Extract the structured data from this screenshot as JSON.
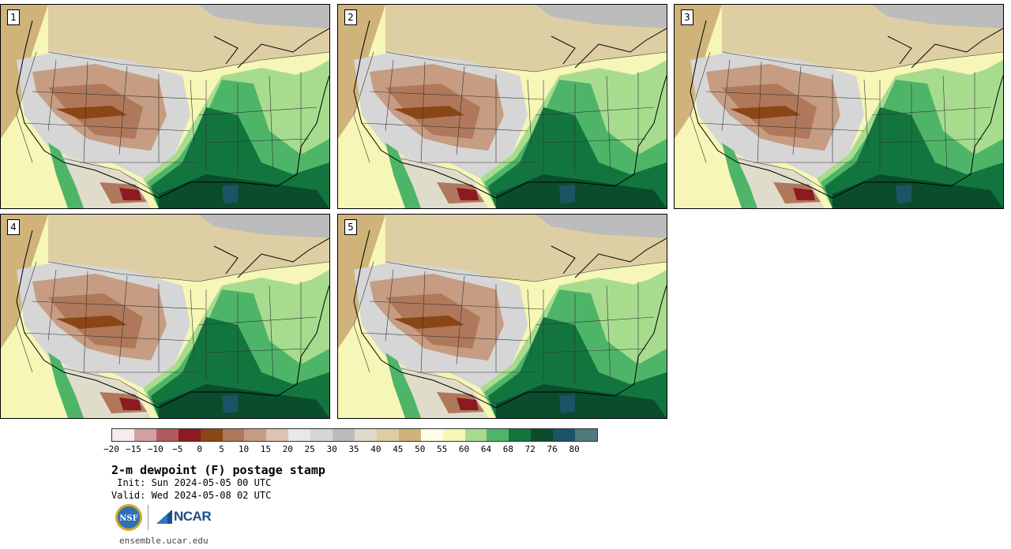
{
  "panels": [
    {
      "label": "1"
    },
    {
      "label": "2"
    },
    {
      "label": "3"
    },
    {
      "label": "4"
    },
    {
      "label": "5"
    }
  ],
  "colorbar": {
    "colors": [
      "#f5ebeb",
      "#d49fa0",
      "#b05b5e",
      "#8b1a22",
      "#8a4616",
      "#b0785a",
      "#c69c82",
      "#dfc3b1",
      "#e8e8e8",
      "#d6d6d6",
      "#bcbcbc",
      "#e0dccc",
      "#ddcfa3",
      "#cfb37a",
      "#fffde6",
      "#f6f6b6",
      "#a7dc8f",
      "#4eb568",
      "#13753e",
      "#0a4d2d",
      "#1d5366",
      "#4f7a7e"
    ],
    "tick_labels": [
      "−20",
      "−15",
      "−10",
      "−5",
      "0",
      "5",
      "10",
      "15",
      "20",
      "25",
      "30",
      "35",
      "40",
      "45",
      "50",
      "55",
      "60",
      "64",
      "68",
      "72",
      "76",
      "80"
    ]
  },
  "title": "2-m dewpoint (F) postage stamp",
  "init": " Init: Sun 2024-05-05 00 UTC",
  "valid": "Valid: Wed 2024-05-08 02 UTC",
  "logos": {
    "nsf": "NSF",
    "ncar": "NCAR"
  },
  "site": "ensemble.ucar.edu"
}
